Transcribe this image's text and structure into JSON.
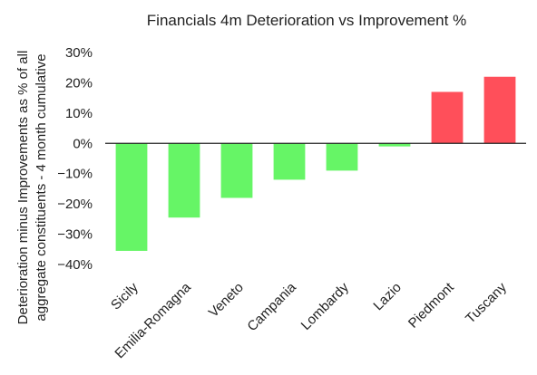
{
  "chart_data": {
    "type": "bar",
    "title": "Financials 4m Deterioration vs Improvement %",
    "ylabel_lines": [
      "Deterioration minus Improvements as % of all",
      "aggregate constituents - 4 month cumulative"
    ],
    "xlabel": "",
    "categories": [
      "Sicily",
      "Emilia-Romagna",
      "Veneto",
      "Campania",
      "Lombardy",
      "Lazio",
      "Piedmont",
      "Tuscany"
    ],
    "values": [
      -35.5,
      -24.5,
      -18.0,
      -12.0,
      -9.0,
      -1.0,
      17.0,
      22.0
    ],
    "ylim": [
      -40,
      30
    ],
    "yticks": [
      30,
      20,
      10,
      0,
      -10,
      -20,
      -30,
      -40
    ],
    "ytick_labels": [
      "30%",
      "20%",
      "10%",
      "0%",
      "−10%",
      "−20%",
      "−30%",
      "−40%"
    ],
    "grid": false,
    "legend": "none",
    "colors": {
      "negative": "#66f566",
      "positive": "#ff4f5a",
      "axis": "#222222"
    }
  }
}
